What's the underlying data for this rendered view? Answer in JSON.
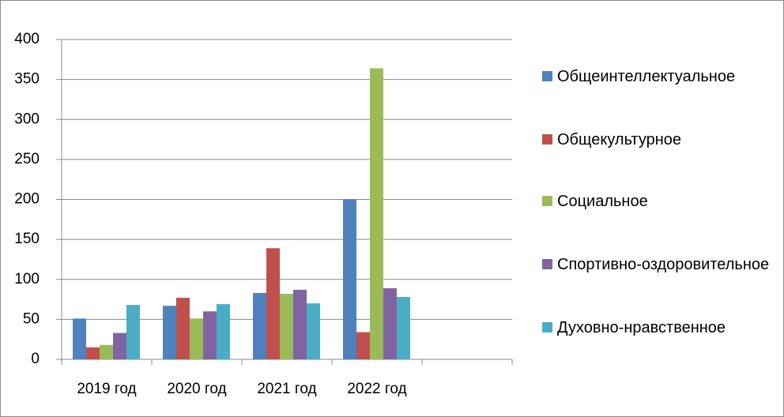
{
  "chart_data": {
    "type": "bar",
    "categories": [
      "2019 год",
      "2020 год",
      "2021 год",
      "2022 год",
      null
    ],
    "series": [
      {
        "name": "Общеинтеллектуальное",
        "color": "#4f81bd",
        "values": [
          51,
          67,
          83,
          200,
          null
        ]
      },
      {
        "name": "Общекультурное",
        "color": "#c0504d",
        "values": [
          15,
          77,
          139,
          34,
          null
        ]
      },
      {
        "name": "Социальное",
        "color": "#9bbb59",
        "values": [
          18,
          51,
          82,
          364,
          null
        ]
      },
      {
        "name": "Спортивно-оздоровительное",
        "color": "#8064a2",
        "values": [
          33,
          60,
          87,
          89,
          null
        ]
      },
      {
        "name": "Духовно-нравственное",
        "color": "#4bacc6",
        "values": [
          68,
          69,
          70,
          78,
          null
        ]
      }
    ],
    "ylim": [
      0,
      400
    ],
    "yticks": [
      0,
      50,
      100,
      150,
      200,
      250,
      300,
      350,
      400
    ],
    "grid": true,
    "legend": "right"
  }
}
